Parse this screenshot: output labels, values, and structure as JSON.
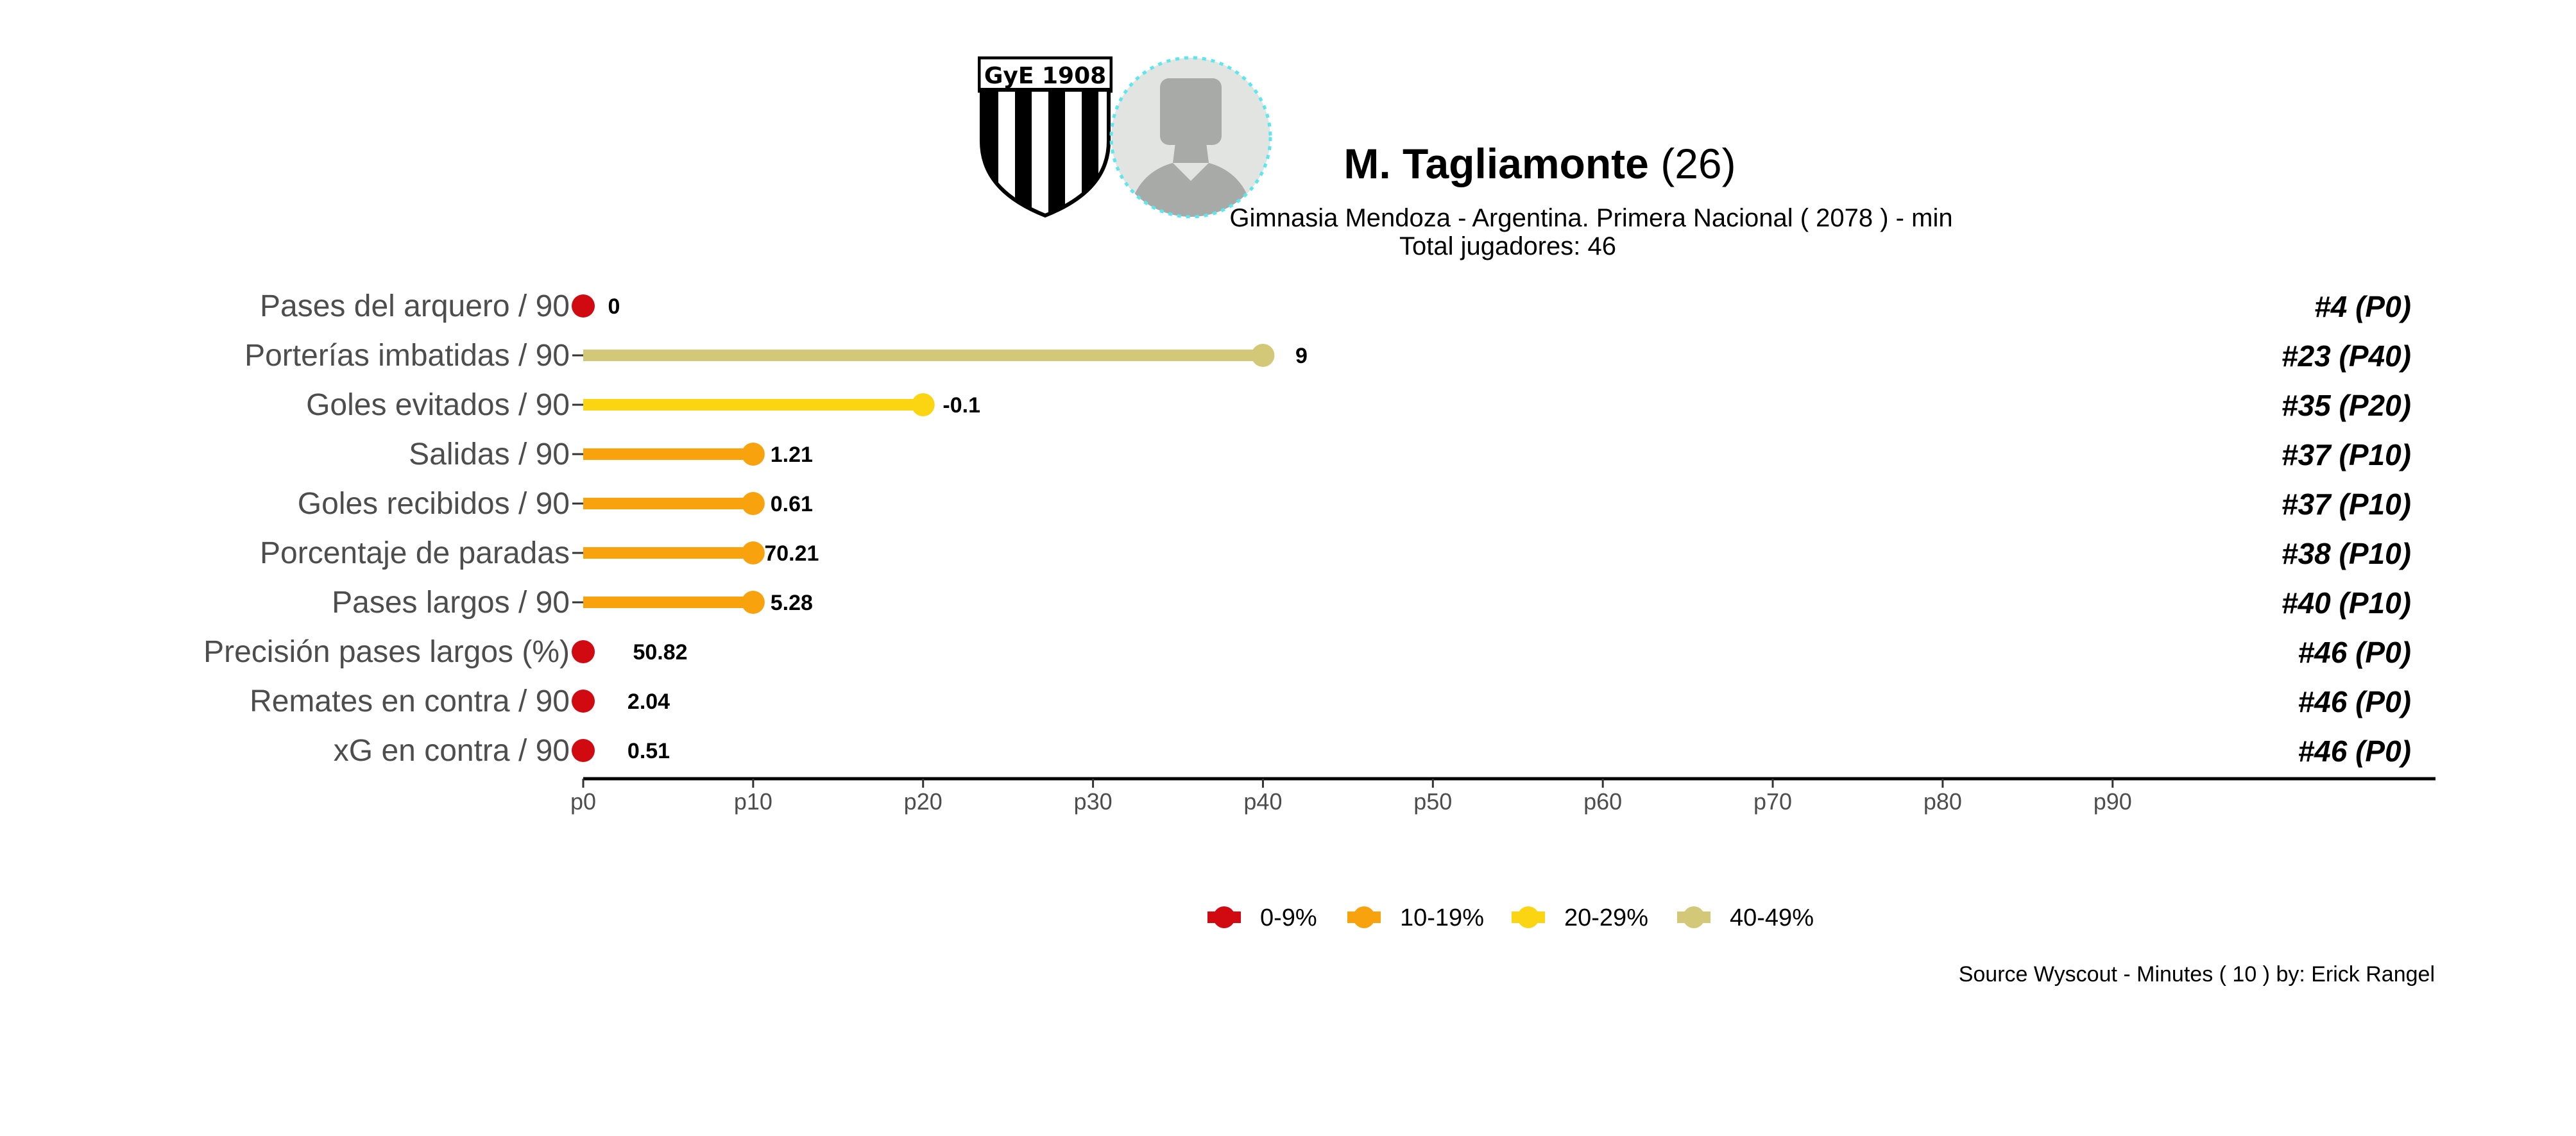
{
  "header": {
    "player_name": "M. Tagliamonte",
    "player_age": "(26)",
    "subtitle": "Gimnasia Mendoza  -  Argentina. Primera Nacional  ( 2078 ) - min",
    "total_players": "Total jugadores:  46",
    "crest_text": "GyE 1908",
    "crest_icon": "club-crest-icon",
    "avatar_icon": "player-avatar-icon"
  },
  "footer": {
    "source": "Source Wyscout - Minutes ( 10 ) by: Erick Rangel"
  },
  "chart_data": {
    "type": "lollipop",
    "x_axis": {
      "ticks": [
        "p0",
        "p10",
        "p20",
        "p30",
        "p40",
        "p50",
        "p60",
        "p70",
        "p80",
        "p90"
      ],
      "range": [
        0,
        109
      ]
    },
    "metrics": [
      {
        "label": "Pases del arquero / 90",
        "percentile": 0,
        "value": "0",
        "rank": "#4 (P0)",
        "color": "#D10A11"
      },
      {
        "label": "Porterías imbatidas / 90",
        "percentile": 40,
        "value": "9",
        "rank": "#23 (P40)",
        "color": "#D2C878"
      },
      {
        "label": "Goles evitados / 90",
        "percentile": 20,
        "value": "-0.1",
        "rank": "#35 (P20)",
        "color": "#FBD512"
      },
      {
        "label": "Salidas / 90",
        "percentile": 10,
        "value": "1.21",
        "rank": "#37 (P10)",
        "color": "#F8A20D"
      },
      {
        "label": "Goles recibidos / 90",
        "percentile": 10,
        "value": "0.61",
        "rank": "#37 (P10)",
        "color": "#F8A20D"
      },
      {
        "label": "Porcentaje de paradas",
        "percentile": 10,
        "value": "70.21",
        "rank": "#38 (P10)",
        "color": "#F8A20D"
      },
      {
        "label": "Pases largos / 90",
        "percentile": 10,
        "value": "5.28",
        "rank": "#40 (P10)",
        "color": "#F8A20D"
      },
      {
        "label": "Precisión pases largos (%)",
        "percentile": 0,
        "value": "50.82",
        "rank": "#46 (P0)",
        "color": "#D10A11"
      },
      {
        "label": "Remates en contra / 90",
        "percentile": 0,
        "value": "2.04",
        "rank": "#46 (P0)",
        "color": "#D10A11"
      },
      {
        "label": "xG en contra / 90",
        "percentile": 0,
        "value": "0.51",
        "rank": "#46 (P0)",
        "color": "#D10A11"
      }
    ],
    "legend": [
      {
        "label": "0-9%",
        "color": "#D10A11"
      },
      {
        "label": "10-19%",
        "color": "#F8A20D"
      },
      {
        "label": "20-29%",
        "color": "#FBD512"
      },
      {
        "label": "40-49%",
        "color": "#D2C878"
      }
    ],
    "legend_position": "bottom"
  }
}
